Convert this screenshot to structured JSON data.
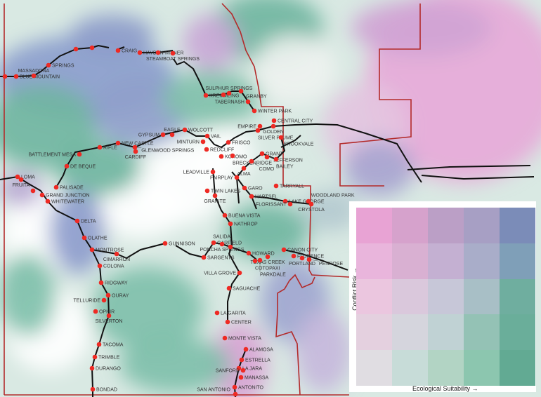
{
  "map": {
    "colors": {
      "border": "#b32a2a",
      "railroad": "#111111",
      "city": "#ee2a24",
      "high_conflict": "#e8a3d4",
      "high_suitability": "#62aa93"
    },
    "cities": [
      "",
      "BLUE MOUNTAIN",
      "MASSADONA",
      "SPRINGS",
      "",
      "",
      "CRAIG",
      "HAYDEN",
      "MILNER",
      "STEAMBOAT SPRINGS",
      "KREMMLING",
      "",
      "SULPHUR SPRINGS",
      "GRANBY",
      "TABERNASH",
      "WINTER PARK",
      "CENTRAL CITY",
      "EMPIRE",
      "GOLDEN",
      "SILVER PLUME",
      "BROOKVALE",
      "WOLCOTT",
      "GYPSUM",
      "EAGLE",
      "VAIL",
      "MINTURN",
      "REDCLIFF",
      "FRISCO",
      "KOKOMO",
      "BRECKENRIDGE",
      "GRANT",
      "JEFFERSON",
      "BAILEY",
      "COMO",
      "ALMA",
      "LEADVILLE",
      "FAIRPLAY",
      "GARO",
      "TWIN LAKES",
      "GRANITE",
      "HARTSEL",
      "TARRYALL",
      "LAKE GEORGE",
      "FLORISSANT",
      "WOODLAND PARK",
      "CRYSTOLA",
      "RIFLE",
      "NEW CASTLE",
      "GLENWOOD SPRINGS",
      "CARDIFF",
      "BATTLEMENT MESA",
      "DE BEQUE",
      "LOMA",
      "FRUITA",
      "",
      "GRAND JUNCTION",
      "PALISADE",
      "WHITEWATER",
      "DELTA",
      "OLATHE",
      "MONTROSE",
      "CIMARRON",
      "COLONA",
      "RIDGWAY",
      "OURAY",
      "TELLURIDE",
      "OPHIR",
      "SILVERTON",
      "TACOMA",
      "TRIMBLE",
      "DURANGO",
      "BONDAD",
      "GUNNISON",
      "SARGENTS",
      "GARFIELD",
      "PONCHA SPRINGS",
      "SALIDA",
      "BUENA VISTA",
      "NATHROP",
      "HOWARD",
      "TEXAS CREEK",
      "COTOPAXI",
      "PARKDALE",
      "VILLA GROVE",
      "SAGUACHE",
      "LA GARITA",
      "CENTER",
      "MONTE VISTA",
      "ALAMOSA",
      "ESTRELLA",
      "LA JARA",
      "SANFORD",
      "MANASSA",
      "ANTONITO",
      "SAN ANTONIO",
      "CANON CITY",
      "FLORENCE",
      "PORTLAND",
      "PENROSE"
    ]
  },
  "legend": {
    "x_label": "Ecological Suitability →",
    "y_label": "Conflict Risk →",
    "grid_colors": [
      [
        "#e8a3d4",
        "#d6a2cc",
        "#bb9fc6",
        "#a79fc4",
        "#7b8cb8"
      ],
      [
        "#e9b5dc",
        "#d9b0d2",
        "#c4b0d2",
        "#a9adc9",
        "#7f9fb8"
      ],
      [
        "#ebc6df",
        "#dac8dc",
        "#c7c7d8",
        "#a8bfc6",
        "#6fae9f"
      ],
      [
        "#e4d0df",
        "#d5d5dd",
        "#c0d2d4",
        "#94c2b5",
        "#6aae9a"
      ],
      [
        "#e0dde2",
        "#c7dcd8",
        "#b2d4c4",
        "#8cc6af",
        "#62aa93"
      ]
    ]
  }
}
